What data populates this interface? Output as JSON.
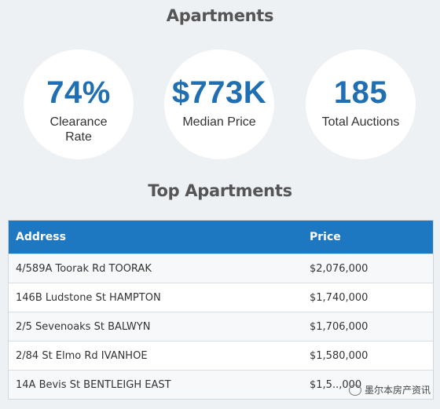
{
  "header": {
    "title": "Apartments"
  },
  "stats": [
    {
      "value": "74%",
      "label": "Clearance Rate"
    },
    {
      "value": "$773K",
      "label": "Median Price"
    },
    {
      "value": "185",
      "label": "Total Auctions"
    }
  ],
  "top_section": {
    "title": "Top Apartments"
  },
  "table": {
    "columns": [
      "Address",
      "Price"
    ],
    "rows": [
      {
        "address": "4/589A Toorak Rd TOORAK",
        "price": "$2,076,000"
      },
      {
        "address": "146B Ludstone St HAMPTON",
        "price": "$1,740,000"
      },
      {
        "address": "2/5 Sevenoaks St BALWYN",
        "price": "$1,706,000"
      },
      {
        "address": "2/84 St Elmo Rd IVANHOE",
        "price": "$1,580,000"
      },
      {
        "address": "14A Bevis St BENTLEIGH EAST",
        "price": "$1,5..,000"
      }
    ]
  },
  "watermark": {
    "text": "墨尔本房产资讯",
    "icon": "wechat-icon"
  },
  "colors": {
    "accent": "#1f6fb2",
    "header_bg": "#1d78c1",
    "page_bg": "#eef1f4"
  }
}
